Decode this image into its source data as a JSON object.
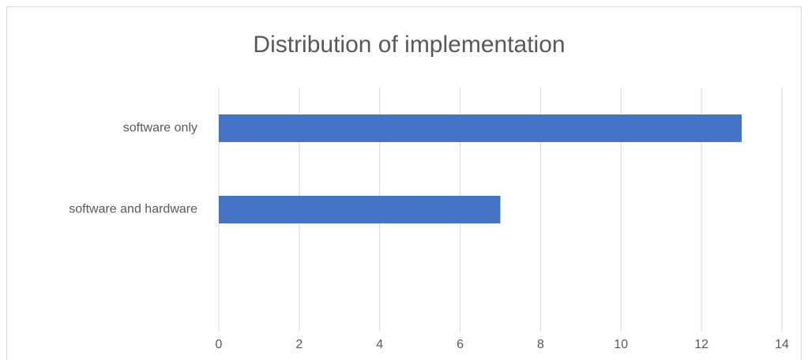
{
  "chart_data": {
    "type": "bar",
    "orientation": "horizontal",
    "title": "Distribution of implementation",
    "categories": [
      "software only",
      "software and hardware",
      null
    ],
    "values": [
      13,
      7,
      null
    ],
    "color": "#4472c4",
    "xlim": [
      0,
      14
    ],
    "xticks": [
      0,
      2,
      4,
      6,
      8,
      10,
      12,
      14
    ],
    "grid": true
  }
}
